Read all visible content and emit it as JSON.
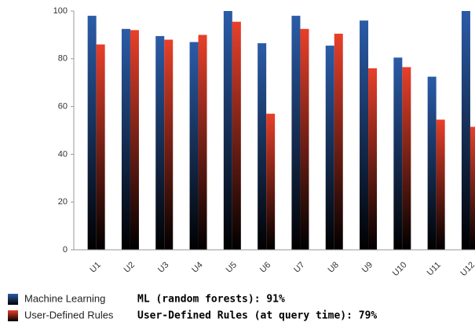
{
  "chart_data": {
    "type": "bar",
    "categories": [
      "U1",
      "U2",
      "U3",
      "U4",
      "U5",
      "U6",
      "U7",
      "U8",
      "U9",
      "U10",
      "U11",
      "U12"
    ],
    "series": [
      {
        "name": "Machine Learning",
        "color": "#2b5ca8",
        "values": [
          98,
          92.5,
          89.5,
          87,
          100,
          86.5,
          98,
          85.5,
          96,
          80.5,
          72.5,
          100
        ]
      },
      {
        "name": "User-Defined Rules",
        "color": "#e8402a",
        "values": [
          86,
          92,
          88,
          90,
          95.5,
          57,
          92.5,
          90.5,
          76,
          76.5,
          54.5,
          51.5
        ]
      }
    ],
    "ylim": [
      0,
      100
    ],
    "yticks": [
      0,
      20,
      40,
      60,
      80,
      100
    ],
    "grid": false,
    "legend": "bottom-left",
    "annotations": [
      "ML (random forests): 91%",
      "User-Defined Rules (at query time): 79%"
    ]
  }
}
